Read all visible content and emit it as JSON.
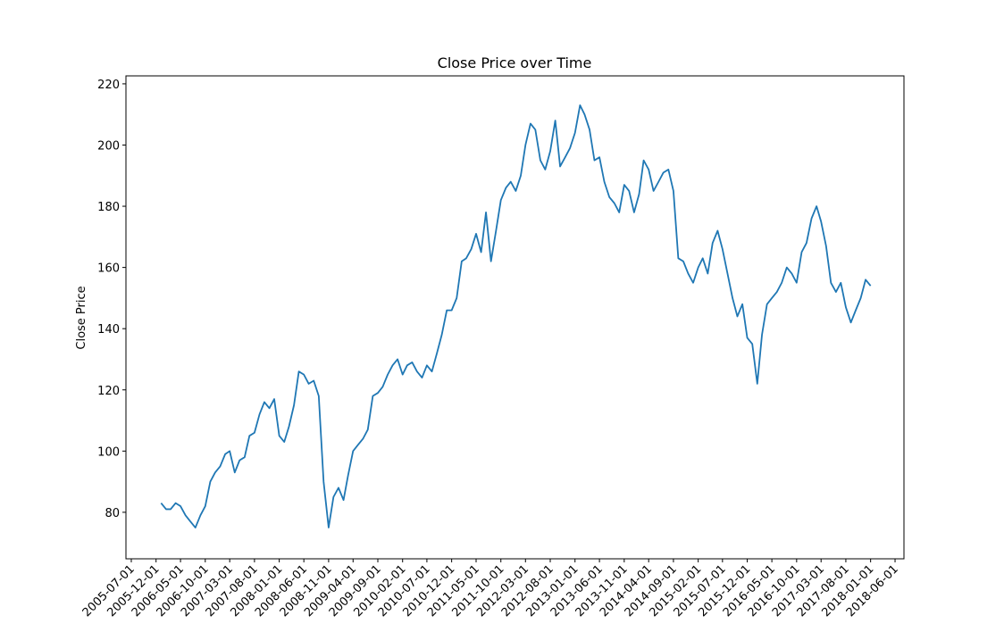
{
  "chart_data": {
    "type": "line",
    "title": "Close Price over Time",
    "ylabel": "Close Price",
    "x": [
      "2006-01-01",
      "2006-02-01",
      "2006-03-01",
      "2006-04-01",
      "2006-05-01",
      "2006-06-01",
      "2006-07-01",
      "2006-08-01",
      "2006-09-01",
      "2006-10-01",
      "2006-11-01",
      "2006-12-01",
      "2007-01-01",
      "2007-02-01",
      "2007-03-01",
      "2007-04-01",
      "2007-05-01",
      "2007-06-01",
      "2007-07-01",
      "2007-08-01",
      "2007-09-01",
      "2007-10-01",
      "2007-11-01",
      "2007-12-01",
      "2008-01-01",
      "2008-02-01",
      "2008-03-01",
      "2008-04-01",
      "2008-05-01",
      "2008-06-01",
      "2008-07-01",
      "2008-08-01",
      "2008-09-01",
      "2008-10-01",
      "2008-11-01",
      "2008-12-01",
      "2009-01-01",
      "2009-02-01",
      "2009-03-01",
      "2009-04-01",
      "2009-05-01",
      "2009-06-01",
      "2009-07-01",
      "2009-08-01",
      "2009-09-01",
      "2009-10-01",
      "2009-11-01",
      "2009-12-01",
      "2010-01-01",
      "2010-02-01",
      "2010-03-01",
      "2010-04-01",
      "2010-05-01",
      "2010-06-01",
      "2010-07-01",
      "2010-08-01",
      "2010-09-01",
      "2010-10-01",
      "2010-11-01",
      "2010-12-01",
      "2011-01-01",
      "2011-02-01",
      "2011-03-01",
      "2011-04-01",
      "2011-05-01",
      "2011-06-01",
      "2011-07-01",
      "2011-08-01",
      "2011-09-01",
      "2011-10-01",
      "2011-11-01",
      "2011-12-01",
      "2012-01-01",
      "2012-02-01",
      "2012-03-01",
      "2012-04-01",
      "2012-05-01",
      "2012-06-01",
      "2012-07-01",
      "2012-08-01",
      "2012-09-01",
      "2012-10-01",
      "2012-11-01",
      "2012-12-01",
      "2013-01-01",
      "2013-02-01",
      "2013-03-01",
      "2013-04-01",
      "2013-05-01",
      "2013-06-01",
      "2013-07-01",
      "2013-08-01",
      "2013-09-01",
      "2013-10-01",
      "2013-11-01",
      "2013-12-01",
      "2014-01-01",
      "2014-02-01",
      "2014-03-01",
      "2014-04-01",
      "2014-05-01",
      "2014-06-01",
      "2014-07-01",
      "2014-08-01",
      "2014-09-01",
      "2014-10-01",
      "2014-11-01",
      "2014-12-01",
      "2015-01-01",
      "2015-02-01",
      "2015-03-01",
      "2015-04-01",
      "2015-05-01",
      "2015-06-01",
      "2015-07-01",
      "2015-08-01",
      "2015-09-01",
      "2015-10-01",
      "2015-11-01",
      "2015-12-01",
      "2016-01-01",
      "2016-02-01",
      "2016-03-01",
      "2016-04-01",
      "2016-05-01",
      "2016-06-01",
      "2016-07-01",
      "2016-08-01",
      "2016-09-01",
      "2016-10-01",
      "2016-11-01",
      "2016-12-01",
      "2017-01-01",
      "2017-02-01",
      "2017-03-01",
      "2017-04-01",
      "2017-05-01",
      "2017-06-01",
      "2017-07-01",
      "2017-08-01",
      "2017-09-01",
      "2017-10-01",
      "2017-11-01",
      "2017-12-01",
      "2018-01-01"
    ],
    "series": [
      {
        "name": "Close",
        "color": "#1f77b4",
        "values": [
          83,
          81,
          81,
          83,
          82,
          79,
          77,
          75,
          79,
          82,
          90,
          93,
          95,
          99,
          100,
          93,
          97,
          98,
          105,
          106,
          112,
          116,
          114,
          117,
          105,
          103,
          108,
          115,
          126,
          125,
          122,
          123,
          118,
          90,
          75,
          85,
          88,
          84,
          92,
          100,
          102,
          104,
          107,
          118,
          119,
          121,
          125,
          128,
          130,
          125,
          128,
          129,
          126,
          124,
          128,
          126,
          132,
          138,
          146,
          146,
          150,
          162,
          163,
          166,
          171,
          165,
          178,
          162,
          172,
          182,
          186,
          188,
          185,
          190,
          200,
          207,
          205,
          195,
          192,
          198,
          208,
          193,
          196,
          199,
          204,
          213,
          210,
          205,
          195,
          196,
          188,
          183,
          181,
          178,
          187,
          185,
          178,
          184,
          195,
          192,
          185,
          188,
          191,
          192,
          185,
          163,
          162,
          158,
          155,
          160,
          163,
          158,
          168,
          172,
          166,
          158,
          150,
          144,
          148,
          137,
          135,
          122,
          138,
          148,
          150,
          152,
          155,
          160,
          158,
          155,
          165,
          168,
          176,
          180,
          175,
          167,
          155,
          152,
          155,
          147,
          142,
          146,
          150,
          156,
          154
        ]
      }
    ],
    "xlim": [
      "2005-05-29",
      "2018-07-26"
    ],
    "xticks": [
      "2005-07-01",
      "2005-12-01",
      "2006-05-01",
      "2006-10-01",
      "2007-03-01",
      "2007-08-01",
      "2008-01-01",
      "2008-06-01",
      "2008-11-01",
      "2009-04-01",
      "2009-09-01",
      "2010-02-01",
      "2010-07-01",
      "2010-12-01",
      "2011-05-01",
      "2011-10-01",
      "2012-03-01",
      "2012-08-01",
      "2013-01-01",
      "2013-06-01",
      "2013-11-01",
      "2014-04-01",
      "2014-09-01",
      "2015-02-01",
      "2015-07-01",
      "2015-12-01",
      "2016-05-01",
      "2016-10-01",
      "2017-03-01",
      "2017-08-01",
      "2018-01-01",
      "2018-06-01"
    ],
    "ylim": [
      64.8,
      222.6
    ],
    "yticks": [
      80,
      100,
      120,
      140,
      160,
      180,
      200,
      220
    ],
    "grid": false
  }
}
